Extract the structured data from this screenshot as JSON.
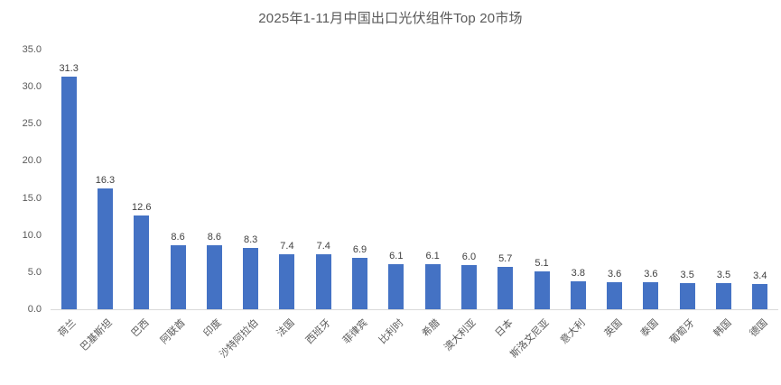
{
  "chart_data": {
    "type": "bar",
    "title": "2025年1-11月中国出口光伏组件Top 20市场",
    "categories": [
      "荷兰",
      "巴基斯坦",
      "巴西",
      "阿联酋",
      "印度",
      "沙特阿拉伯",
      "法国",
      "西班牙",
      "菲律宾",
      "比利时",
      "希腊",
      "澳大利亚",
      "日本",
      "斯洛文尼亚",
      "意大利",
      "英国",
      "泰国",
      "葡萄牙",
      "韩国",
      "德国"
    ],
    "values": [
      31.3,
      16.3,
      12.6,
      8.6,
      8.6,
      8.3,
      7.4,
      7.4,
      6.9,
      6.1,
      6.1,
      6.0,
      5.7,
      5.1,
      3.8,
      3.6,
      3.6,
      3.5,
      3.5,
      3.4
    ],
    "xlabel": "",
    "ylabel": "",
    "ylim": [
      0,
      35
    ],
    "yticks": [
      "35.0",
      "30.0",
      "25.0",
      "20.0",
      "15.0",
      "10.0",
      "5.0",
      "0.0"
    ],
    "grid": false,
    "legend": false,
    "data_labels": true,
    "colors": {
      "bar": "#4472c4",
      "title_text": "#595959",
      "axis_text": "#595959",
      "data_label_text": "#404040",
      "axis_line": "#d9d9d9",
      "background": "#ffffff"
    }
  }
}
